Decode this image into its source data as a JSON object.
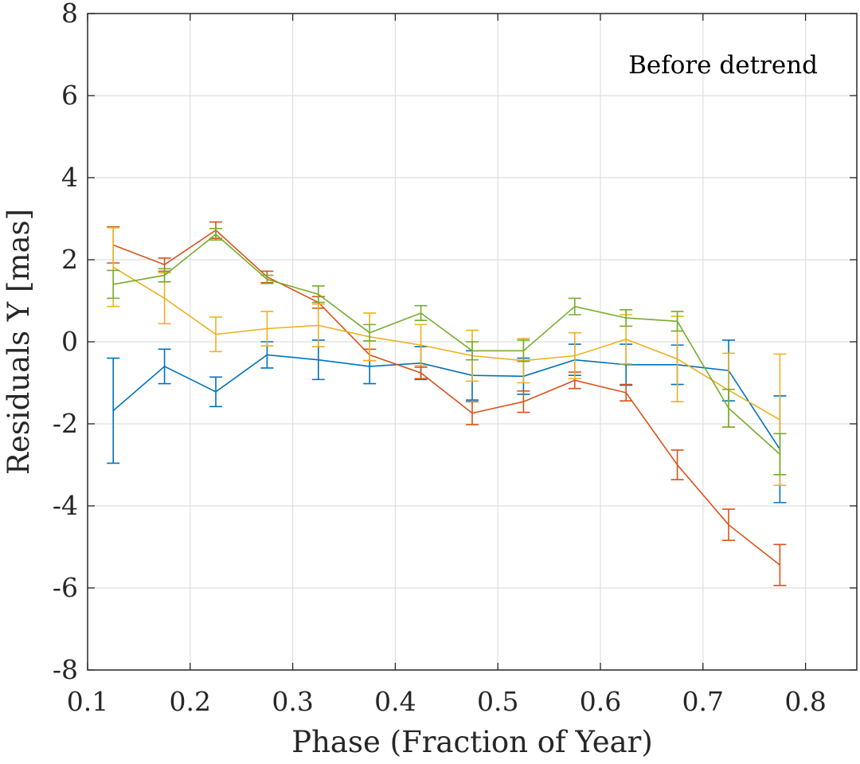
{
  "chart_data": {
    "type": "line",
    "title": "",
    "xlabel": "Phase (Fraction of Year)",
    "ylabel": "Residuals Y [mas]",
    "annotation": "Before detrend",
    "xlim": [
      0.1,
      0.85
    ],
    "ylim": [
      -8,
      8
    ],
    "xticks": [
      0.1,
      0.2,
      0.3,
      0.4,
      0.5,
      0.6,
      0.7,
      0.8
    ],
    "xtick_labels": [
      "0.1",
      "0.2",
      "0.3",
      "0.4",
      "0.5",
      "0.6",
      "0.7",
      "0.8"
    ],
    "yticks": [
      -8,
      -6,
      -4,
      -2,
      0,
      2,
      4,
      6,
      8
    ],
    "ytick_labels": [
      "-8",
      "-6",
      "-4",
      "-2",
      "0",
      "2",
      "4",
      "6",
      "8"
    ],
    "grid": true,
    "legend": "none",
    "x": [
      0.125,
      0.175,
      0.225,
      0.275,
      0.325,
      0.375,
      0.425,
      0.475,
      0.525,
      0.575,
      0.625,
      0.675,
      0.725,
      0.775
    ],
    "series": [
      {
        "color": "#0072BD",
        "values": [
          -1.68,
          -0.6,
          -1.22,
          -0.32,
          -0.44,
          -0.6,
          -0.52,
          -0.82,
          -0.84,
          -0.44,
          -0.56,
          -0.56,
          -0.7,
          -2.62
        ],
        "errors": [
          1.28,
          0.42,
          0.36,
          0.32,
          0.48,
          0.42,
          0.4,
          0.6,
          0.44,
          0.38,
          0.5,
          0.48,
          0.74,
          1.3
        ]
      },
      {
        "color": "#D95319",
        "values": [
          2.36,
          1.88,
          2.72,
          1.58,
          0.96,
          -0.32,
          -0.76,
          -1.74,
          -1.46,
          -0.94,
          -1.24,
          -3.0,
          -4.46,
          -5.44
        ],
        "errors": [
          0.44,
          0.16,
          0.2,
          0.14,
          0.14,
          0.14,
          0.14,
          0.28,
          0.26,
          0.2,
          0.2,
          0.36,
          0.38,
          0.5
        ]
      },
      {
        "color": "#EDB120",
        "values": [
          1.82,
          1.06,
          0.18,
          0.32,
          0.4,
          0.12,
          -0.08,
          -0.34,
          -0.46,
          -0.34,
          0.06,
          -0.42,
          -1.18,
          -1.9
        ],
        "errors": [
          0.96,
          0.62,
          0.42,
          0.42,
          0.52,
          0.58,
          0.5,
          0.62,
          0.54,
          0.56,
          0.6,
          1.04,
          0.9,
          1.6
        ]
      },
      {
        "color": "#77AC30",
        "values": [
          1.4,
          1.62,
          2.62,
          1.52,
          1.16,
          0.22,
          0.7,
          -0.22,
          -0.22,
          0.86,
          0.58,
          0.5,
          -1.62,
          -2.74
        ],
        "errors": [
          0.34,
          0.16,
          0.14,
          0.1,
          0.2,
          0.2,
          0.18,
          0.22,
          0.26,
          0.2,
          0.2,
          0.24,
          0.46,
          0.5
        ]
      }
    ]
  }
}
